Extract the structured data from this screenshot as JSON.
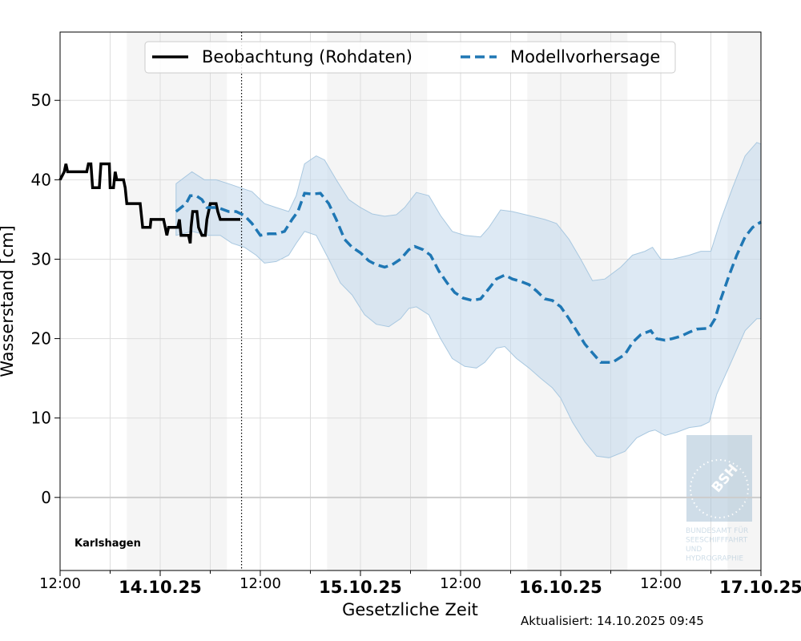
{
  "chart_data": {
    "type": "line",
    "station": "Karlshagen",
    "xlabel": "Gesetzliche Zeit",
    "ylabel": "Wasserstand [cm]",
    "updated": "Aktualisiert: 14.10.2025 09:45",
    "x_unit": "hours since 13.10.25 12:00",
    "xlim": [
      0,
      84
    ],
    "ylim": [
      -9.2,
      58.6
    ],
    "grid": true,
    "legend_position": "top-center",
    "y_ticks": [
      0,
      10,
      20,
      30,
      40,
      50
    ],
    "x_ticks": [
      {
        "h": 0,
        "label": "12:00",
        "bold": false
      },
      {
        "h": 12,
        "label": "14.10.25",
        "bold": true
      },
      {
        "h": 24,
        "label": "12:00",
        "bold": false
      },
      {
        "h": 36,
        "label": "15.10.25",
        "bold": true
      },
      {
        "h": 48,
        "label": "12:00",
        "bold": false
      },
      {
        "h": 60,
        "label": "16.10.25",
        "bold": true
      },
      {
        "h": 72,
        "label": "12:00",
        "bold": false
      },
      {
        "h": 84,
        "label": "17.10.25",
        "bold": true
      }
    ],
    "night_bands": [
      [
        8,
        20
      ],
      [
        32,
        44
      ],
      [
        56,
        68
      ],
      [
        80,
        84
      ]
    ],
    "now_h": 21.75,
    "colors": {
      "observation": "#000000",
      "forecast": "#1f77b4",
      "band": "#c6dbed",
      "night": "#f5f5f5"
    },
    "series": [
      {
        "name": "Beobachtung (Rohdaten)",
        "style": "solid",
        "points": [
          [
            0,
            40
          ],
          [
            0.5,
            41
          ],
          [
            0.7,
            42
          ],
          [
            0.9,
            41
          ],
          [
            3.2,
            41
          ],
          [
            3.4,
            42
          ],
          [
            3.7,
            42
          ],
          [
            3.9,
            39
          ],
          [
            4.7,
            39
          ],
          [
            4.9,
            42
          ],
          [
            5.9,
            42
          ],
          [
            6.0,
            39
          ],
          [
            6.4,
            39
          ],
          [
            6.6,
            41
          ],
          [
            6.8,
            40
          ],
          [
            7.6,
            40
          ],
          [
            7.8,
            39
          ],
          [
            8.0,
            37
          ],
          [
            9.6,
            37
          ],
          [
            9.8,
            35
          ],
          [
            9.9,
            34
          ],
          [
            10.8,
            34
          ],
          [
            10.9,
            35
          ],
          [
            12.4,
            35
          ],
          [
            12.6,
            34
          ],
          [
            12.8,
            33
          ],
          [
            13.0,
            34
          ],
          [
            14.1,
            34
          ],
          [
            14.3,
            35
          ],
          [
            14.5,
            33
          ],
          [
            15.4,
            33
          ],
          [
            15.6,
            32
          ],
          [
            15.7,
            34
          ],
          [
            15.9,
            36
          ],
          [
            16.4,
            36
          ],
          [
            16.6,
            34
          ],
          [
            17.0,
            33
          ],
          [
            17.4,
            33
          ],
          [
            17.6,
            35
          ],
          [
            17.8,
            36
          ],
          [
            18.0,
            37
          ],
          [
            18.7,
            37
          ],
          [
            18.9,
            36
          ],
          [
            19.2,
            35
          ],
          [
            21.6,
            35
          ]
        ]
      },
      {
        "name": "Modellvorhersage",
        "style": "dashed",
        "points": [
          [
            13.9,
            36
          ],
          [
            15.1,
            37
          ],
          [
            15.6,
            38
          ],
          [
            16.3,
            38
          ],
          [
            17.0,
            37.5
          ],
          [
            17.6,
            36.5
          ],
          [
            18.2,
            36.5
          ],
          [
            18.9,
            36.5
          ],
          [
            20.2,
            36
          ],
          [
            21.1,
            36
          ],
          [
            22.1,
            35.5
          ],
          [
            23.0,
            34.5
          ],
          [
            24.0,
            33
          ],
          [
            25.0,
            33.2
          ],
          [
            25.9,
            33.2
          ],
          [
            26.9,
            33.5
          ],
          [
            27.8,
            35
          ],
          [
            28.5,
            36
          ],
          [
            29.3,
            38.3
          ],
          [
            30.2,
            38.2
          ],
          [
            31.2,
            38.3
          ],
          [
            32.2,
            37
          ],
          [
            33.1,
            35
          ],
          [
            34.1,
            32.5
          ],
          [
            35.0,
            31.5
          ],
          [
            36.0,
            30.8
          ],
          [
            37.0,
            29.8
          ],
          [
            37.9,
            29.3
          ],
          [
            38.9,
            29
          ],
          [
            39.8,
            29.3
          ],
          [
            40.8,
            30
          ],
          [
            41.8,
            31.2
          ],
          [
            42.5,
            31.6
          ],
          [
            43.5,
            31.2
          ],
          [
            44.4,
            30.5
          ],
          [
            45.4,
            28.5
          ],
          [
            46.4,
            27
          ],
          [
            47.3,
            25.8
          ],
          [
            48.3,
            25.1
          ],
          [
            49.4,
            24.8
          ],
          [
            50.4,
            25
          ],
          [
            51.4,
            26.3
          ],
          [
            52.3,
            27.5
          ],
          [
            53.3,
            28
          ],
          [
            54.2,
            27.5
          ],
          [
            55.2,
            27.2
          ],
          [
            56.2,
            26.8
          ],
          [
            57.1,
            26
          ],
          [
            58.1,
            25
          ],
          [
            59.0,
            24.8
          ],
          [
            60.0,
            24
          ],
          [
            61.0,
            22.5
          ],
          [
            61.9,
            21
          ],
          [
            62.9,
            19.3
          ],
          [
            63.8,
            18.2
          ],
          [
            64.8,
            17
          ],
          [
            66.2,
            17
          ],
          [
            67.7,
            18
          ],
          [
            68.6,
            19.5
          ],
          [
            69.6,
            20.5
          ],
          [
            70.8,
            21
          ],
          [
            71.5,
            20
          ],
          [
            72.5,
            19.8
          ],
          [
            73.4,
            20
          ],
          [
            74.4,
            20.3
          ],
          [
            75.4,
            20.8
          ],
          [
            76.3,
            21.2
          ],
          [
            77.8,
            21.3
          ],
          [
            78.5,
            22.5
          ],
          [
            79.2,
            25
          ],
          [
            80.2,
            28
          ],
          [
            81.1,
            30.5
          ],
          [
            82.1,
            32.8
          ],
          [
            83.0,
            34
          ],
          [
            84.0,
            34.7
          ]
        ],
        "upper": [
          [
            13.9,
            39.5
          ],
          [
            15.8,
            41
          ],
          [
            17.3,
            40
          ],
          [
            18.7,
            40
          ],
          [
            20.2,
            39.5
          ],
          [
            21.6,
            39
          ],
          [
            23.0,
            38.5
          ],
          [
            24.5,
            37
          ],
          [
            25.9,
            36.5
          ],
          [
            27.4,
            36
          ],
          [
            28.3,
            38
          ],
          [
            29.3,
            42
          ],
          [
            30.7,
            43
          ],
          [
            31.7,
            42.5
          ],
          [
            33.1,
            40
          ],
          [
            34.6,
            37.5
          ],
          [
            36.0,
            36.5
          ],
          [
            37.4,
            35.7
          ],
          [
            38.9,
            35.4
          ],
          [
            40.3,
            35.6
          ],
          [
            41.3,
            36.5
          ],
          [
            42.7,
            38.4
          ],
          [
            44.2,
            38
          ],
          [
            45.6,
            35.5
          ],
          [
            47.0,
            33.5
          ],
          [
            48.5,
            33
          ],
          [
            50.4,
            32.8
          ],
          [
            51.4,
            34
          ],
          [
            52.8,
            36.2
          ],
          [
            54.2,
            36
          ],
          [
            56.2,
            35.5
          ],
          [
            58.1,
            35
          ],
          [
            59.5,
            34.5
          ],
          [
            61.0,
            32.5
          ],
          [
            62.4,
            30
          ],
          [
            63.8,
            27.3
          ],
          [
            65.3,
            27.5
          ],
          [
            67.2,
            29
          ],
          [
            68.6,
            30.5
          ],
          [
            70.1,
            31
          ],
          [
            71.0,
            31.5
          ],
          [
            72.0,
            30
          ],
          [
            73.4,
            30
          ],
          [
            75.4,
            30.5
          ],
          [
            76.8,
            31
          ],
          [
            78.0,
            31
          ],
          [
            79.2,
            35
          ],
          [
            80.6,
            39
          ],
          [
            82.1,
            43
          ],
          [
            83.5,
            44.7
          ],
          [
            84.0,
            44.5
          ]
        ],
        "lower": [
          [
            13.9,
            33
          ],
          [
            15.8,
            33.5
          ],
          [
            17.8,
            33
          ],
          [
            19.2,
            33
          ],
          [
            20.6,
            32
          ],
          [
            22.1,
            31.5
          ],
          [
            23.5,
            30.5
          ],
          [
            24.5,
            29.5
          ],
          [
            25.9,
            29.7
          ],
          [
            27.4,
            30.5
          ],
          [
            28.3,
            32
          ],
          [
            29.3,
            33.5
          ],
          [
            30.7,
            33
          ],
          [
            32.2,
            30
          ],
          [
            33.6,
            27
          ],
          [
            35.0,
            25.5
          ],
          [
            36.5,
            23
          ],
          [
            37.9,
            21.8
          ],
          [
            39.4,
            21.5
          ],
          [
            40.8,
            22.5
          ],
          [
            41.8,
            23.8
          ],
          [
            42.7,
            24
          ],
          [
            44.2,
            23
          ],
          [
            45.6,
            20
          ],
          [
            47.0,
            17.5
          ],
          [
            48.5,
            16.5
          ],
          [
            49.9,
            16.3
          ],
          [
            50.9,
            17
          ],
          [
            52.3,
            18.8
          ],
          [
            53.3,
            19
          ],
          [
            54.7,
            17.5
          ],
          [
            56.2,
            16.3
          ],
          [
            57.6,
            15
          ],
          [
            59.0,
            13.8
          ],
          [
            60.0,
            12.5
          ],
          [
            61.4,
            9.5
          ],
          [
            62.9,
            7
          ],
          [
            64.3,
            5.2
          ],
          [
            65.8,
            5
          ],
          [
            67.7,
            5.8
          ],
          [
            69.1,
            7.5
          ],
          [
            70.6,
            8.3
          ],
          [
            71.3,
            8.5
          ],
          [
            72.5,
            7.8
          ],
          [
            73.9,
            8.2
          ],
          [
            75.4,
            8.8
          ],
          [
            76.8,
            9
          ],
          [
            77.8,
            9.5
          ],
          [
            78.7,
            13
          ],
          [
            80.2,
            16.5
          ],
          [
            82.1,
            21
          ],
          [
            83.5,
            22.5
          ],
          [
            84.0,
            22.5
          ]
        ]
      }
    ],
    "logo": {
      "name": "BSH",
      "lines": [
        "BUNDESAMT FÜR",
        "SEESCHIFFFAHRT",
        "UND",
        "HYDROGRAPHIE"
      ]
    }
  }
}
